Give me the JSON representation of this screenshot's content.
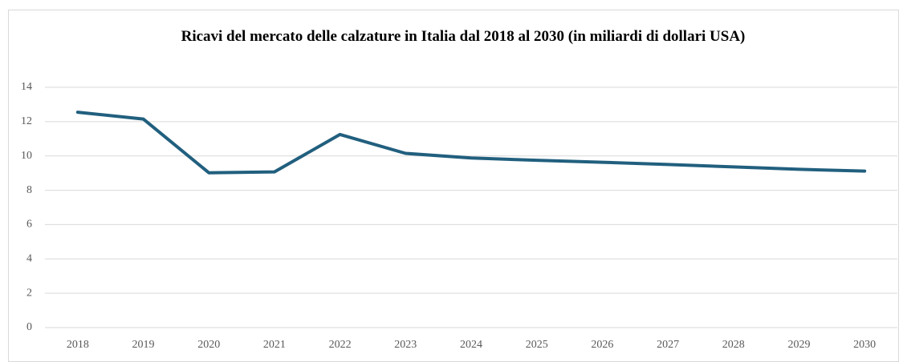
{
  "chart_data": {
    "type": "line",
    "title": "Ricavi del mercato delle calzature in Italia dal 2018 al 2030 (in miliardi di dollari USA)",
    "categories": [
      "2018",
      "2019",
      "2020",
      "2021",
      "2022",
      "2023",
      "2024",
      "2025",
      "2026",
      "2027",
      "2028",
      "2029",
      "2030"
    ],
    "values": [
      12.55,
      12.15,
      9.02,
      9.07,
      11.25,
      10.15,
      9.88,
      9.75,
      9.63,
      9.5,
      9.36,
      9.22,
      9.12
    ],
    "color": "#215f7e",
    "ylim": [
      0,
      14
    ],
    "yticks": [
      0,
      2,
      4,
      6,
      8,
      10,
      12,
      14
    ],
    "grid": true
  }
}
